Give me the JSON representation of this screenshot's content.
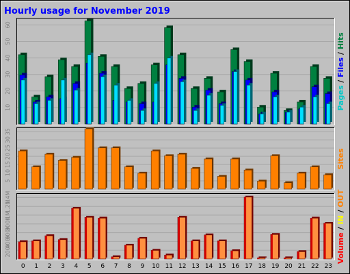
{
  "chart_data": {
    "type": "bar",
    "title": "Hourly usage for November 2019",
    "categories": [
      "0",
      "1",
      "2",
      "3",
      "4",
      "5",
      "6",
      "7",
      "8",
      "9",
      "10",
      "11",
      "12",
      "13",
      "14",
      "15",
      "16",
      "17",
      "18",
      "19",
      "20",
      "21",
      "22",
      "23"
    ],
    "panels": [
      {
        "id": "hits-files-pages",
        "yticks": [
          "10",
          "20",
          "30",
          "40",
          "50",
          "60"
        ],
        "ylim": [
          0,
          62
        ],
        "series": [
          {
            "name": "Hits",
            "color": "#008040",
            "values": [
              41,
              16,
              28,
              38,
              34,
              61,
              40,
              34,
              21,
              24,
              35,
              57,
              41,
              21,
              27,
              19,
              44,
              37,
              10,
              30,
              8,
              13,
              34,
              27
            ]
          },
          {
            "name": "Files",
            "color": "#0000ff",
            "values": [
              29,
              13,
              16,
              15,
              24,
              36,
              30,
              14,
              13,
              12,
              13,
              35,
              27,
              10,
              20,
              12,
              31,
              26,
              6,
              19,
              7,
              9,
              22,
              18
            ]
          },
          {
            "name": "Pages",
            "color": "#00e0ff",
            "values": [
              26,
              12,
              14,
              26,
              20,
              41,
              28,
              23,
              14,
              8,
              24,
              39,
              25,
              8,
              17,
              11,
              31,
              23,
              6,
              16,
              7,
              10,
              16,
              12
            ]
          }
        ]
      },
      {
        "id": "sites",
        "yticks": [
          "5",
          "10",
          "15",
          "20",
          "25",
          "30",
          "35"
        ],
        "ylim": [
          0,
          38
        ],
        "series": [
          {
            "name": "Sites",
            "color": "#ff8000",
            "values": [
              24,
              14,
              22,
              18,
              20,
              38,
              26,
              26,
              14,
              10,
              24,
              21,
              22,
              13,
              19,
              8,
              19,
              12,
              5,
              21,
              4,
              10,
              14,
              9
            ]
          }
        ]
      },
      {
        "id": "volume",
        "yticks": [
          "200K",
          "400K",
          "600K",
          "800K",
          "1M",
          "1.2M",
          "1.4M"
        ],
        "ylim": [
          0,
          1500
        ],
        "series": [
          {
            "name": "Volume",
            "color": "#ff0000",
            "values": [
              400,
              420,
              540,
              450,
              1180,
              970,
              950,
              50,
              320,
              480,
              200,
              90,
              970,
              420,
              560,
              420,
              190,
              1440,
              25,
              570,
              25,
              170,
              950,
              830
            ]
          }
        ]
      }
    ],
    "legend": {
      "top_panel": [
        {
          "text": "Pages",
          "color": "#00c8c8"
        },
        {
          "text": " / ",
          "color": "#000000"
        },
        {
          "text": "Files",
          "color": "#0000ff"
        },
        {
          "text": " / ",
          "color": "#000000"
        },
        {
          "text": "Hits",
          "color": "#008040"
        }
      ],
      "middle_panel": [
        {
          "text": "Sites",
          "color": "#ff8000"
        }
      ],
      "bottom_panel": [
        {
          "text": "Volume",
          "color": "#ff0000"
        },
        {
          "text": " / ",
          "color": "#000000"
        },
        {
          "text": "IN",
          "color": "#ffff00"
        },
        {
          "text": " / ",
          "color": "#000000"
        },
        {
          "text": "OUT",
          "color": "#ff8000"
        }
      ]
    },
    "colors": {
      "background": "#c0c0c0",
      "title": "#0000ff"
    }
  }
}
